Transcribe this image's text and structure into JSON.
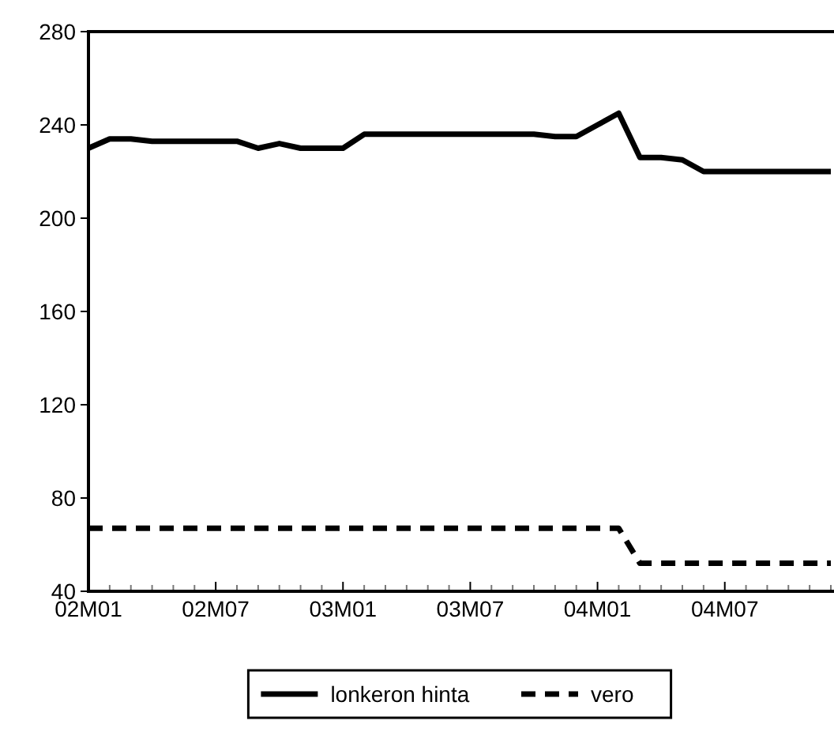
{
  "chart_data": {
    "type": "line",
    "categories": [
      "02M01",
      null,
      null,
      null,
      null,
      null,
      "02M07",
      null,
      null,
      null,
      null,
      null,
      "03M01",
      null,
      null,
      null,
      null,
      null,
      "03M07",
      null,
      null,
      null,
      null,
      null,
      "04M01",
      null,
      null,
      null,
      null,
      null,
      "04M07",
      null,
      null,
      null,
      null,
      null
    ],
    "series": [
      {
        "name": "lonkeron hinta",
        "color": "#000000",
        "line_style": "solid",
        "values": [
          230,
          234,
          234,
          233,
          233,
          233,
          233,
          233,
          230,
          232,
          230,
          230,
          230,
          236,
          236,
          236,
          236,
          236,
          236,
          236,
          236,
          236,
          235,
          235,
          240,
          245,
          226,
          226,
          225,
          220,
          220,
          220,
          220,
          220,
          220,
          220
        ]
      },
      {
        "name": "vero",
        "color": "#000000",
        "line_style": "dashed",
        "values": [
          67,
          67,
          67,
          67,
          67,
          67,
          67,
          67,
          67,
          67,
          67,
          67,
          67,
          67,
          67,
          67,
          67,
          67,
          67,
          67,
          67,
          67,
          67,
          67,
          67,
          67,
          52,
          52,
          52,
          52,
          52,
          52,
          52,
          52,
          52,
          52
        ]
      }
    ],
    "ylim": [
      40,
      280
    ],
    "yticks": [
      40,
      80,
      120,
      160,
      200,
      240,
      280
    ],
    "grid": false,
    "legend": "bottom"
  }
}
